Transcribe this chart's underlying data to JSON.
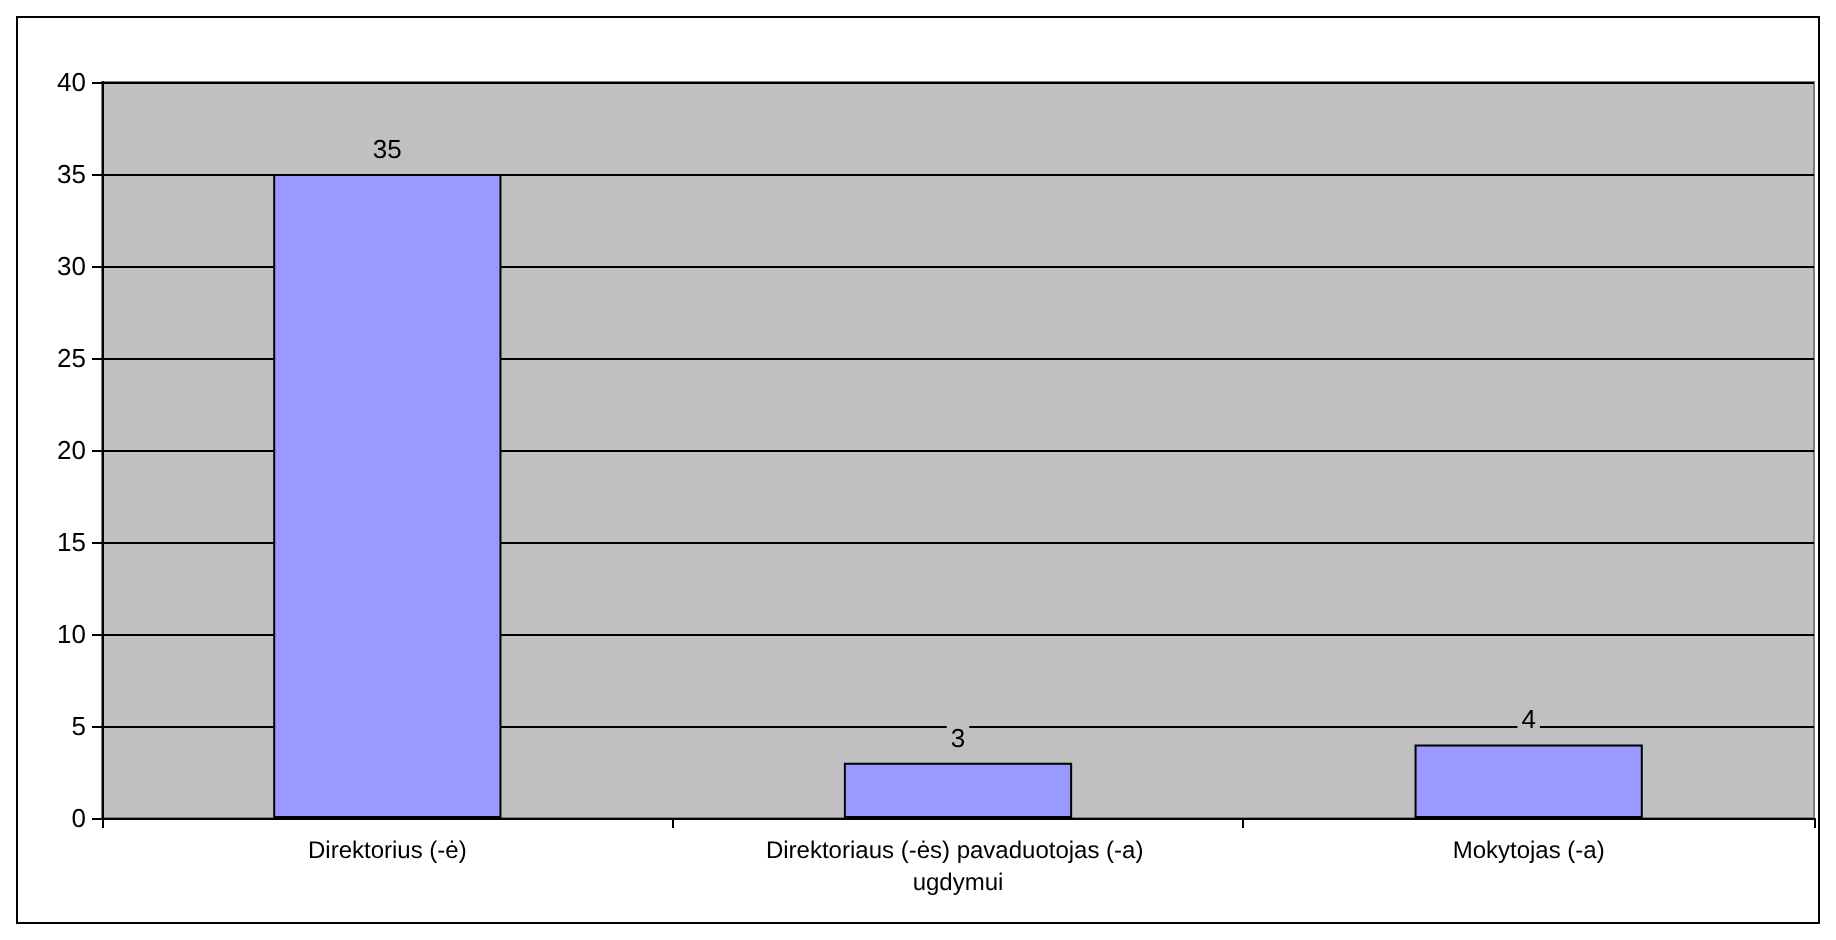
{
  "chart_data": {
    "type": "bar",
    "categories": [
      "Direktorius (-ė)",
      "Direktoriaus (-ės) pavaduotojas (-a) ugdymui",
      "Mokytojas (-a)"
    ],
    "values": [
      35,
      3,
      4
    ],
    "color": "#9999ff",
    "ylim": [
      0,
      40
    ],
    "yticks": [
      0,
      5,
      10,
      15,
      20,
      25,
      30,
      35,
      40
    ],
    "grid": "y",
    "data_labels": true
  }
}
